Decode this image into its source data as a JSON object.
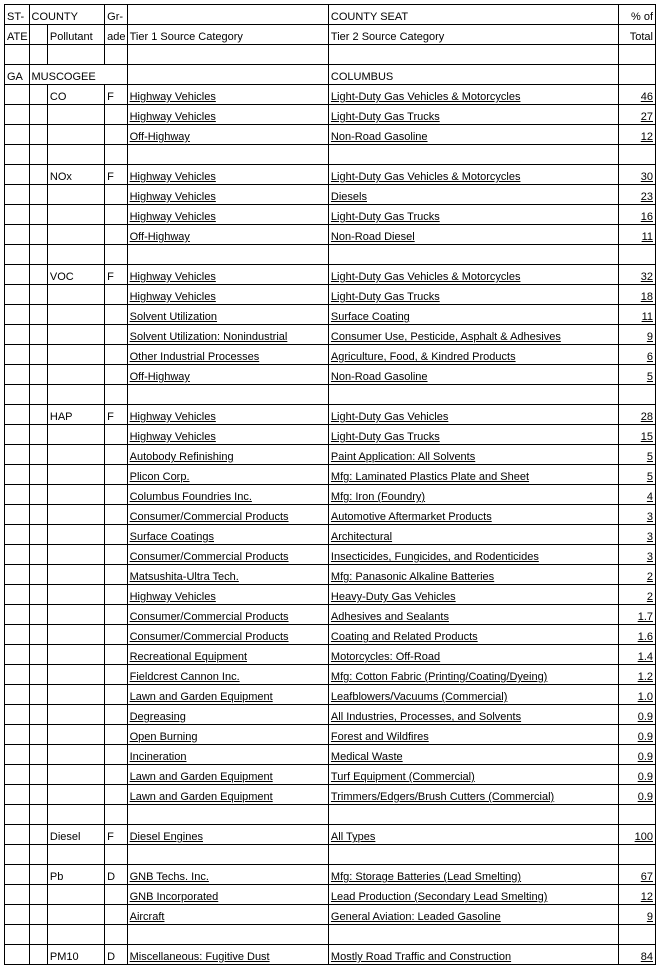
{
  "header": {
    "state1": "ST-",
    "state2": "ATE",
    "county": "COUNTY",
    "pollutant": "Pollutant",
    "grade1": "Gr-",
    "grade2": "ade",
    "tier1": "Tier 1 Source Category",
    "county_seat": "COUNTY SEAT",
    "tier2": "Tier 2 Source Category",
    "pct1": "% of",
    "pct2": "Total"
  },
  "state": "GA",
  "county": "MUSCOGEE",
  "county_seat": "COLUMBUS",
  "groups": [
    {
      "pollutant": "CO",
      "grade": "F",
      "rows": [
        {
          "t1": "Highway Vehicles",
          "t2": "Light-Duty Gas Vehicles & Motorcycles",
          "pct": "46"
        },
        {
          "t1": "Highway Vehicles",
          "t2": "Light-Duty Gas Trucks",
          "pct": "27"
        },
        {
          "t1": "Off-Highway",
          "t2": "Non-Road Gasoline",
          "pct": "12"
        }
      ]
    },
    {
      "pollutant": "NOx",
      "grade": "F",
      "rows": [
        {
          "t1": "Highway Vehicles",
          "t2": "Light-Duty Gas Vehicles & Motorcycles",
          "pct": "30"
        },
        {
          "t1": "Highway Vehicles",
          "t2": "Diesels",
          "pct": "23"
        },
        {
          "t1": "Highway Vehicles",
          "t2": "Light-Duty Gas Trucks",
          "pct": "16"
        },
        {
          "t1": "Off-Highway",
          "t2": "Non-Road Diesel",
          "pct": "11"
        }
      ]
    },
    {
      "pollutant": "VOC",
      "grade": "F",
      "rows": [
        {
          "t1": "Highway Vehicles",
          "t2": "Light-Duty Gas Vehicles & Motorcycles",
          "pct": "32"
        },
        {
          "t1": "Highway Vehicles",
          "t2": "Light-Duty Gas Trucks",
          "pct": "18"
        },
        {
          "t1": "Solvent Utilization",
          "t2": "Surface Coating",
          "pct": "11"
        },
        {
          "t1": "Solvent Utilization: Nonindustrial",
          "t2": "Consumer Use, Pesticide, Asphalt & Adhesives",
          "pct": "9"
        },
        {
          "t1": "Other Industrial Processes",
          "t2": "Agriculture, Food, & Kindred Products",
          "pct": "6"
        },
        {
          "t1": "Off-Highway",
          "t2": "Non-Road Gasoline",
          "pct": "5"
        }
      ]
    },
    {
      "pollutant": "HAP",
      "grade": "F",
      "rows": [
        {
          "t1": "Highway Vehicles",
          "t2": "Light-Duty Gas Vehicles",
          "pct": "28"
        },
        {
          "t1": "Highway Vehicles",
          "t2": "Light-Duty Gas Trucks",
          "pct": "15"
        },
        {
          "t1": "Autobody Refinishing",
          "t2": "Paint Application: All Solvents",
          "pct": "5"
        },
        {
          "t1": "Plicon Corp.",
          "t2": "Mfg: Laminated Plastics Plate and Sheet",
          "pct": "5"
        },
        {
          "t1": "Columbus Foundries Inc.",
          "t2": "Mfg: Iron (Foundry)",
          "pct": "4"
        },
        {
          "t1": "Consumer/Commercial Products",
          "t2": "Automotive Aftermarket Products",
          "pct": "3"
        },
        {
          "t1": "Surface Coatings",
          "t2": "Architectural",
          "pct": "3"
        },
        {
          "t1": "Consumer/Commercial Products",
          "t2": "Insecticides, Fungicides, and Rodenticides",
          "pct": "3"
        },
        {
          "t1": "Matsushita-Ultra Tech.",
          "t2": "Mfg: Panasonic Alkaline Batteries",
          "pct": "2"
        },
        {
          "t1": "Highway Vehicles",
          "t2": "Heavy-Duty Gas Vehicles",
          "pct": "2"
        },
        {
          "t1": "Consumer/Commercial Products",
          "t2": "Adhesives and Sealants",
          "pct": "1.7"
        },
        {
          "t1": "Consumer/Commercial Products",
          "t2": "Coating and Related Products",
          "pct": "1.6"
        },
        {
          "t1": "Recreational Equipment",
          "t2": "Motorcycles: Off-Road",
          "pct": "1.4"
        },
        {
          "t1": "Fieldcrest Cannon Inc.",
          "t2": "Mfg: Cotton Fabric (Printing/Coating/Dyeing)",
          "pct": "1.2"
        },
        {
          "t1": "Lawn and Garden Equipment",
          "t2": "Leafblowers/Vacuums (Commercial)",
          "pct": "1.0"
        },
        {
          "t1": "Degreasing",
          "t2": "All Industries, Processes, and Solvents",
          "pct": "0.9"
        },
        {
          "t1": "Open Burning",
          "t2": "Forest and Wildfires",
          "pct": "0.9"
        },
        {
          "t1": "Incineration",
          "t2": "Medical Waste",
          "pct": "0.9"
        },
        {
          "t1": "Lawn and Garden Equipment",
          "t2": "Turf Equipment (Commercial)",
          "pct": "0.9"
        },
        {
          "t1": "Lawn and Garden Equipment",
          "t2": "Trimmers/Edgers/Brush Cutters (Commercial)",
          "pct": "0.9"
        }
      ]
    },
    {
      "pollutant": "Diesel",
      "grade": "F",
      "rows": [
        {
          "t1": "Diesel Engines",
          "t2": "All Types",
          "pct": "100"
        }
      ]
    },
    {
      "pollutant": "Pb",
      "grade": "D",
      "rows": [
        {
          "t1": "GNB Techs. Inc.",
          "t2": "Mfg: Storage Batteries (Lead Smelting)",
          "pct": "67"
        },
        {
          "t1": "GNB Incorporated",
          "t2": "Lead Production (Secondary Lead Smelting)",
          "pct": "12"
        },
        {
          "t1": "Aircraft",
          "t2": "General Aviation: Leaded Gasoline",
          "pct": "9"
        }
      ]
    },
    {
      "pollutant": "PM10",
      "grade": "D",
      "rows": [
        {
          "t1": "Miscellaneous: Fugitive Dust",
          "t2": "Mostly Road Traffic and Construction",
          "pct": "84"
        }
      ]
    }
  ]
}
